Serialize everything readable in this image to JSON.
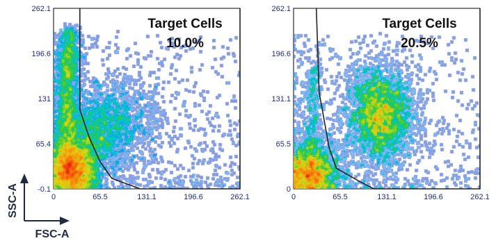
{
  "axis_labels": {
    "x": "FSC-A",
    "y": "SSC-A"
  },
  "chart_data": [
    {
      "type": "scatter",
      "subtype": "flow-cytometry density plot",
      "xlabel": "FSC-A",
      "ylabel": "SSC-A",
      "xlim": [
        0,
        262.1
      ],
      "ylim": [
        -0.1,
        262.1
      ],
      "x_ticks": [
        "0",
        "65.5",
        "131.1",
        "196.6",
        "262.1"
      ],
      "y_ticks": [
        "-0.1",
        "65.4",
        "131",
        "196.6",
        "262.1"
      ],
      "gate": {
        "name": "Target Cells",
        "percent": "10.0%"
      },
      "gate_polygon": [
        [
          37,
          262.1
        ],
        [
          37,
          115
        ],
        [
          50,
          75
        ],
        [
          65,
          40
        ],
        [
          82,
          15
        ],
        [
          122,
          -0.1
        ],
        [
          262.1,
          -0.1
        ],
        [
          262.1,
          262.1
        ]
      ],
      "populations": [
        {
          "type": "band",
          "x0": 22,
          "y0": 230,
          "x1": 16,
          "y1": 12,
          "w": 9,
          "n": 2400
        },
        {
          "type": "blob",
          "cx": 28,
          "cy": 25,
          "sx": 18,
          "sy": 22,
          "rot": 0,
          "n": 3600
        },
        {
          "type": "blob",
          "cx": 58,
          "cy": 78,
          "sx": 24,
          "sy": 30,
          "rot": -0.5,
          "n": 1300
        },
        {
          "type": "blob",
          "cx": 90,
          "cy": 100,
          "sx": 32,
          "sy": 32,
          "rot": -0.3,
          "n": 900
        },
        {
          "type": "scatter",
          "n": 1000
        }
      ]
    },
    {
      "type": "scatter",
      "subtype": "flow-cytometry density plot",
      "xlabel": "FSC-A",
      "ylabel": "SSC-A",
      "xlim": [
        0,
        262.1
      ],
      "ylim": [
        0,
        262.1
      ],
      "x_ticks": [
        "0",
        "65.5",
        "131.1",
        "196.6",
        "262.1"
      ],
      "y_ticks": [
        "0",
        "65.5",
        "131.1",
        "196.6",
        "262.1"
      ],
      "gate": {
        "name": "Target Cells",
        "percent": "20.5%"
      },
      "gate_polygon": [
        [
          32,
          262.1
        ],
        [
          36,
          140
        ],
        [
          50,
          60
        ],
        [
          60,
          30
        ],
        [
          94,
          10
        ],
        [
          113,
          0
        ],
        [
          262.1,
          0
        ],
        [
          262.1,
          262.1
        ]
      ],
      "populations": [
        {
          "type": "blob",
          "cx": 22,
          "cy": 22,
          "sx": 22,
          "sy": 22,
          "rot": 0,
          "n": 2800
        },
        {
          "type": "blob",
          "cx": 122,
          "cy": 107,
          "sx": 24,
          "sy": 35,
          "rot": 0,
          "n": 3000
        },
        {
          "type": "band",
          "x0": 30,
          "y0": 180,
          "x1": 25,
          "y1": 60,
          "w": 6,
          "n": 300
        },
        {
          "type": "scatter",
          "n": 900
        }
      ]
    }
  ]
}
